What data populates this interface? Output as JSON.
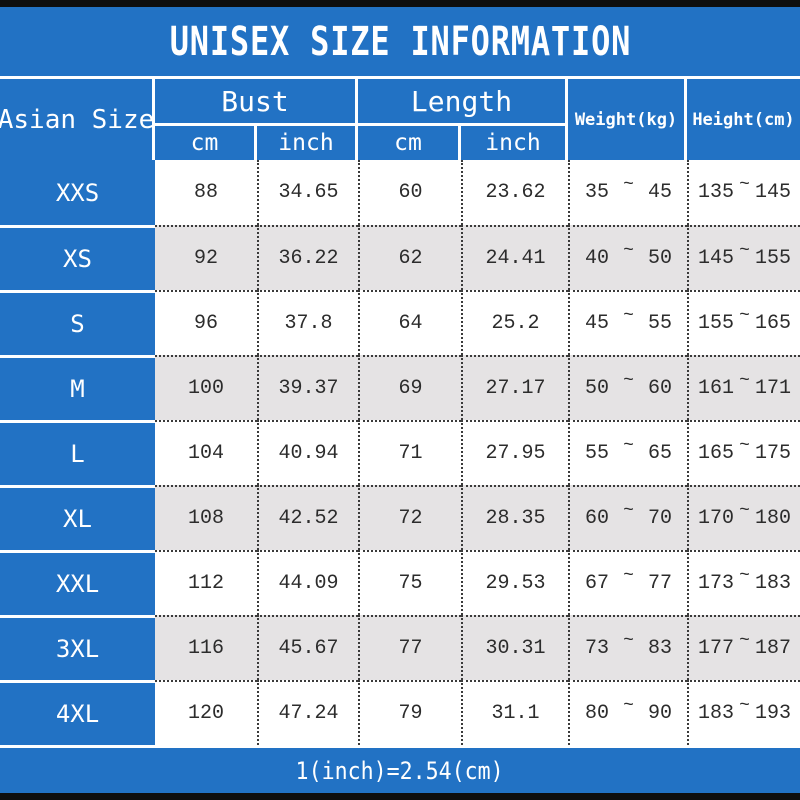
{
  "colors": {
    "accent_blue": "#2272C4",
    "row_alt": "#E5E3E4",
    "edge_bar": "#0E0E0E",
    "text": "#2C2C2C"
  },
  "chart_data": {
    "type": "table",
    "title": "UNISEX SIZE INFORMATION",
    "note": "1(inch)=2.54(cm)",
    "range_separator": "~",
    "header": {
      "size": "Asian Size",
      "bust": "Bust",
      "length": "Length",
      "weight": "Weight(kg)",
      "height": "Height(cm)",
      "unit_cm": "cm",
      "unit_inch": "inch"
    },
    "rows": [
      {
        "size": "XXS",
        "bust_cm": "88",
        "bust_in": "34.65",
        "length_cm": "60",
        "length_in": "23.62",
        "weight_min": "35",
        "weight_max": "45",
        "height_min": "135",
        "height_max": "145"
      },
      {
        "size": "XS",
        "bust_cm": "92",
        "bust_in": "36.22",
        "length_cm": "62",
        "length_in": "24.41",
        "weight_min": "40",
        "weight_max": "50",
        "height_min": "145",
        "height_max": "155"
      },
      {
        "size": "S",
        "bust_cm": "96",
        "bust_in": "37.8",
        "length_cm": "64",
        "length_in": "25.2",
        "weight_min": "45",
        "weight_max": "55",
        "height_min": "155",
        "height_max": "165"
      },
      {
        "size": "M",
        "bust_cm": "100",
        "bust_in": "39.37",
        "length_cm": "69",
        "length_in": "27.17",
        "weight_min": "50",
        "weight_max": "60",
        "height_min": "161",
        "height_max": "171"
      },
      {
        "size": "L",
        "bust_cm": "104",
        "bust_in": "40.94",
        "length_cm": "71",
        "length_in": "27.95",
        "weight_min": "55",
        "weight_max": "65",
        "height_min": "165",
        "height_max": "175"
      },
      {
        "size": "XL",
        "bust_cm": "108",
        "bust_in": "42.52",
        "length_cm": "72",
        "length_in": "28.35",
        "weight_min": "60",
        "weight_max": "70",
        "height_min": "170",
        "height_max": "180"
      },
      {
        "size": "XXL",
        "bust_cm": "112",
        "bust_in": "44.09",
        "length_cm": "75",
        "length_in": "29.53",
        "weight_min": "67",
        "weight_max": "77",
        "height_min": "173",
        "height_max": "183"
      },
      {
        "size": "3XL",
        "bust_cm": "116",
        "bust_in": "45.67",
        "length_cm": "77",
        "length_in": "30.31",
        "weight_min": "73",
        "weight_max": "83",
        "height_min": "177",
        "height_max": "187"
      },
      {
        "size": "4XL",
        "bust_cm": "120",
        "bust_in": "47.24",
        "length_cm": "79",
        "length_in": "31.1",
        "weight_min": "80",
        "weight_max": "90",
        "height_min": "183",
        "height_max": "193"
      }
    ]
  }
}
